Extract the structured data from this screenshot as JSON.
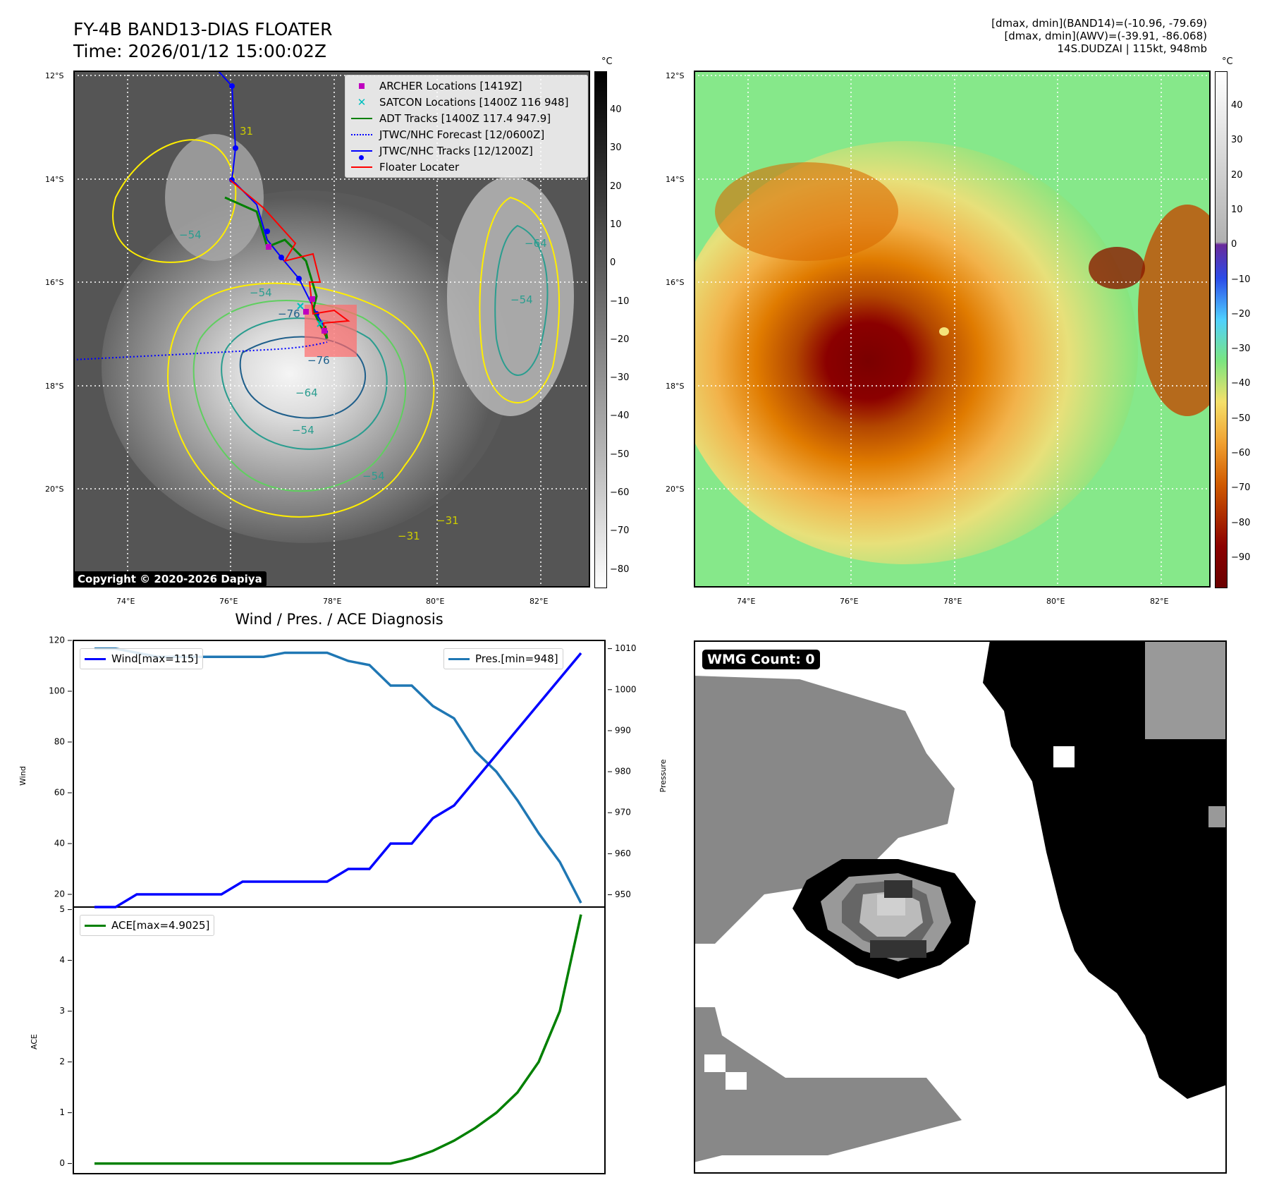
{
  "header": {
    "title_line1": "FY-4B BAND13-DIAS FLOATER",
    "title_line2": "Time: 2026/01/12 15:00:02Z",
    "right_line1": "[dmax, dmin](BAND14)=(-10.96, -79.69)",
    "right_line2": "[dmax, dmin](AWV)=(-39.91, -86.068)",
    "right_line3": "14S.DUDZAI | 115kt, 948mb"
  },
  "map": {
    "lat_labels": [
      "12°S",
      "14°S",
      "16°S",
      "18°S",
      "20°S"
    ],
    "lon_labels": [
      "74°E",
      "76°E",
      "78°E",
      "80°E",
      "82°E"
    ],
    "copyright": "Copyright © 2020-2026 Dapiya",
    "contour_labels": [
      "31",
      "−54",
      "−76",
      "−76",
      "−64",
      "−54",
      "−54",
      "−31",
      "−31",
      "−54",
      "−64",
      "−54"
    ],
    "legend": [
      {
        "label": "ARCHER Locations [1419Z]",
        "color": "#bf00bf",
        "marker": "square"
      },
      {
        "label": "SATCON Locations [1400Z 116 948]",
        "color": "#00bfbf",
        "marker": "x"
      },
      {
        "label": "ADT Tracks [1400Z 117.4 947.9]",
        "color": "#008000",
        "marker": "line"
      },
      {
        "label": "JTWC/NHC Forecast [12/0600Z]",
        "color": "#0000ff",
        "marker": "dotted"
      },
      {
        "label": "JTWC/NHC Tracks [12/1200Z]",
        "color": "#0000ff",
        "marker": "line-dot"
      },
      {
        "label": "Floater Locater",
        "color": "#ff0000",
        "marker": "line"
      }
    ],
    "colorbar_gray": {
      "unit": "°C",
      "ticks": [
        "40",
        "30",
        "20",
        "10",
        "0",
        "−10",
        "−20",
        "−30",
        "−40",
        "−50",
        "−60",
        "−70",
        "−80"
      ]
    },
    "colorbar_color": {
      "unit": "°C",
      "ticks": [
        "40",
        "30",
        "20",
        "10",
        "0",
        "−10",
        "−20",
        "−30",
        "−40",
        "−50",
        "−60",
        "−70",
        "−80",
        "−90"
      ]
    }
  },
  "chart_data": [
    {
      "type": "line",
      "title": "Wind / Pres. / ACE Diagnosis",
      "ylabel": "Wind",
      "ylim": [
        15,
        120
      ],
      "yticks": [
        "120",
        "100",
        "80",
        "60",
        "40",
        "20"
      ],
      "y2label": "Pressure",
      "y2lim": [
        947,
        1012
      ],
      "y2ticks": [
        "1010",
        "1000",
        "990",
        "980",
        "970",
        "960",
        "950"
      ],
      "x": [
        0,
        1,
        2,
        3,
        4,
        5,
        6,
        7,
        8,
        9,
        10,
        11,
        12,
        13,
        14,
        15,
        16,
        17,
        18,
        19,
        20,
        21,
        22,
        23
      ],
      "series": [
        {
          "name": "Wind[max=115]",
          "axis": "left",
          "color": "#0000ff",
          "values": [
            15,
            15,
            20,
            20,
            20,
            20,
            20,
            25,
            25,
            25,
            25,
            25,
            30,
            30,
            40,
            40,
            50,
            55,
            65,
            75,
            85,
            95,
            105,
            115
          ]
        },
        {
          "name": "Pres.[min=948]",
          "axis": "right",
          "color": "#1f77b4",
          "values": [
            1010,
            1010,
            1009,
            1008,
            1008,
            1008,
            1008,
            1008,
            1008,
            1009,
            1009,
            1009,
            1007,
            1006,
            1001,
            1001,
            996,
            993,
            985,
            980,
            973,
            965,
            958,
            948
          ]
        }
      ]
    },
    {
      "type": "line",
      "ylabel": "ACE",
      "ylim": [
        -0.2,
        5.05
      ],
      "yticks": [
        "5",
        "4",
        "3",
        "2",
        "1",
        "0"
      ],
      "x": [
        0,
        1,
        2,
        3,
        4,
        5,
        6,
        7,
        8,
        9,
        10,
        11,
        12,
        13,
        14,
        15,
        16,
        17,
        18,
        19,
        20,
        21,
        22,
        23
      ],
      "series": [
        {
          "name": "ACE[max=4.9025]",
          "color": "#008000",
          "values": [
            0,
            0,
            0,
            0,
            0,
            0,
            0,
            0,
            0,
            0,
            0,
            0,
            0,
            0,
            0,
            0.1,
            0.25,
            0.45,
            0.7,
            1.0,
            1.4,
            2.0,
            3.0,
            4.9025
          ]
        }
      ]
    }
  ],
  "wmg": {
    "label": "WMG Count: 0"
  }
}
